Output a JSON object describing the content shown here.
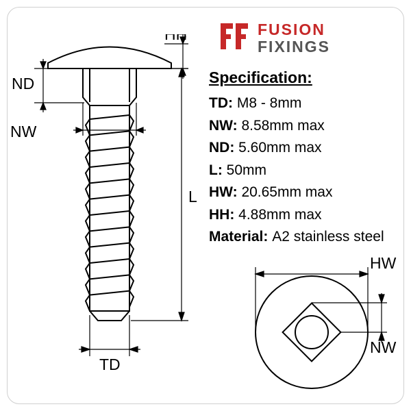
{
  "brand": {
    "line1": "FUSION",
    "line2": "FIXINGS",
    "logo_color": "#c62828",
    "logo_fontsize": 23
  },
  "spec_title": "Specification:",
  "specs": [
    {
      "label": "TD:",
      "value": "M8 - 8mm"
    },
    {
      "label": "NW:",
      "value": "8.58mm max"
    },
    {
      "label": "ND:",
      "value": "5.60mm max"
    },
    {
      "label": "L:",
      "value": "50mm"
    },
    {
      "label": "HW:",
      "value": "20.65mm max"
    },
    {
      "label": "HH:",
      "value": "4.88mm max"
    },
    {
      "label": "Material:",
      "value": "A2 stainless steel"
    }
  ],
  "side_view": {
    "labels": {
      "HH": "HH",
      "ND": "ND",
      "NW": "NW",
      "L": "L",
      "TD": "TD"
    },
    "stroke": "#000000",
    "fill": "#ffffff",
    "thread_count": 12,
    "head_width": 180,
    "head_height": 28,
    "neck_width": 78,
    "neck_depth": 42,
    "shaft_width": 62,
    "shaft_length": 270,
    "label_fontsize": 23
  },
  "top_view": {
    "labels": {
      "HW": "HW",
      "NW": "NW"
    },
    "stroke": "#000000",
    "circle_r": 82,
    "square_side": 60,
    "label_fontsize": 23
  },
  "colors": {
    "background": "#ffffff",
    "frame_border": "#d0d0d0",
    "text": "#000000",
    "brand_sub": "#555555"
  }
}
